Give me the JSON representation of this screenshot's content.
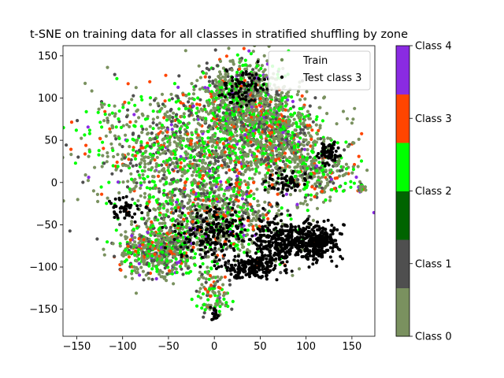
{
  "chart_data": {
    "type": "scatter",
    "title": "t-SNE on training data for all classes in stratified shuffling by zone",
    "xlabel": "",
    "ylabel": "",
    "xlim": [
      -165,
      175
    ],
    "ylim": [
      -182,
      162
    ],
    "xticks": [
      -150,
      -100,
      -50,
      0,
      50,
      100,
      150
    ],
    "yticks": [
      -150,
      -100,
      -50,
      0,
      50,
      100,
      150
    ],
    "xtick_labels": [
      "−150",
      "−100",
      "−50",
      "0",
      "50",
      "100",
      "150"
    ],
    "ytick_labels": [
      "−150",
      "−100",
      "−50",
      "0",
      "50",
      "100",
      "150"
    ],
    "grid": false,
    "legend": {
      "placement": "top-right",
      "entries": [
        {
          "label": "Train",
          "color": "#6f8f55"
        },
        {
          "label": "Test class 3",
          "color": "#000000"
        }
      ]
    },
    "colorbar": {
      "classes": [
        "Class 0",
        "Class 1",
        "Class 2",
        "Class 3",
        "Class 4"
      ],
      "colors": [
        "#7a915f",
        "#4f4f4f",
        "#006400",
        "#00ff00",
        "#ff4500",
        "#8a2be2"
      ]
    },
    "series": [
      {
        "name": "Train",
        "regions": [
          {
            "cx": -10,
            "cy": 40,
            "rx": 130,
            "ry": 70,
            "count": 1600
          },
          {
            "cx": 30,
            "cy": 100,
            "rx": 45,
            "ry": 45,
            "count": 700
          },
          {
            "cx": 70,
            "cy": 60,
            "rx": 40,
            "ry": 40,
            "count": 450
          },
          {
            "cx": -60,
            "cy": -80,
            "rx": 45,
            "ry": 30,
            "count": 550
          },
          {
            "cx": 0,
            "cy": -40,
            "rx": 80,
            "ry": 55,
            "count": 800
          },
          {
            "cx": 110,
            "cy": 10,
            "rx": 35,
            "ry": 30,
            "count": 250
          },
          {
            "cx": 0,
            "cy": -130,
            "rx": 18,
            "ry": 25,
            "count": 120
          },
          {
            "cx": 160,
            "cy": -7,
            "rx": 5,
            "ry": 5,
            "count": 25
          }
        ],
        "class_mix": [
          {
            "color": "#7a915f",
            "weight": 0.46
          },
          {
            "color": "#4f4f4f",
            "weight": 0.18
          },
          {
            "color": "#00ff00",
            "weight": 0.24
          },
          {
            "color": "#ff4500",
            "weight": 0.09
          },
          {
            "color": "#8a2be2",
            "weight": 0.03
          }
        ]
      },
      {
        "name": "Test class 3",
        "color": "#000000",
        "regions": [
          {
            "cx": 110,
            "cy": -70,
            "rx": 25,
            "ry": 20,
            "count": 300
          },
          {
            "cx": 70,
            "cy": -70,
            "rx": 25,
            "ry": 25,
            "count": 250
          },
          {
            "cx": 40,
            "cy": -100,
            "rx": 30,
            "ry": 15,
            "count": 200
          },
          {
            "cx": 0,
            "cy": -60,
            "rx": 40,
            "ry": 30,
            "count": 200
          },
          {
            "cx": 125,
            "cy": 35,
            "rx": 12,
            "ry": 15,
            "count": 60
          },
          {
            "cx": 80,
            "cy": 0,
            "rx": 20,
            "ry": 15,
            "count": 60
          },
          {
            "cx": 30,
            "cy": 110,
            "rx": 25,
            "ry": 20,
            "count": 80
          },
          {
            "cx": -100,
            "cy": -30,
            "rx": 25,
            "ry": 15,
            "count": 50
          },
          {
            "cx": 0,
            "cy": -155,
            "rx": 5,
            "ry": 8,
            "count": 15
          }
        ]
      }
    ]
  }
}
